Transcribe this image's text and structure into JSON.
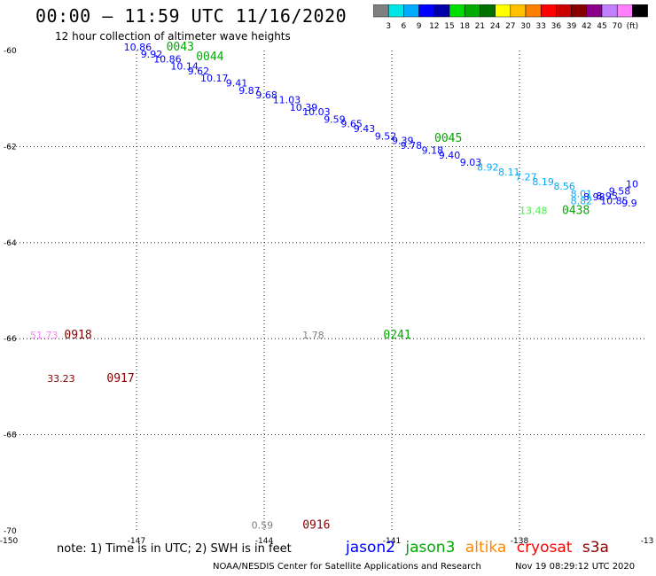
{
  "header": {
    "title": "00:00 — 11:59 UTC 11/16/2020",
    "subtitle": "12 hour collection of altimeter wave heights"
  },
  "colorbar": {
    "colors": [
      "#808080",
      "#00e5e5",
      "#00aaff",
      "#0000ff",
      "#0000a8",
      "#00dd00",
      "#00aa00",
      "#007000",
      "#ffff00",
      "#ffc000",
      "#ff8000",
      "#ff0000",
      "#cc0000",
      "#880000",
      "#8b008b",
      "#c080ff",
      "#ff80ff",
      "#000000"
    ],
    "labels": [
      "3",
      "6",
      "9",
      "12",
      "15",
      "18",
      "21",
      "24",
      "27",
      "30",
      "33",
      "36",
      "39",
      "42",
      "45",
      "70",
      "(ft)"
    ]
  },
  "chart_data": {
    "type": "scatter",
    "title": "00:00 — 11:59 UTC 11/16/2020",
    "subtitle": "12 hour collection of altimeter wave heights",
    "xlim": [
      -150,
      -135
    ],
    "ylim": [
      -70,
      -60
    ],
    "x_ticks": [
      "-150",
      "-147",
      "-144",
      "-141",
      "-138",
      "-13"
    ],
    "y_ticks": [
      "-60",
      "-62",
      "-64",
      "-66",
      "-68",
      "-70"
    ],
    "gridlines": true,
    "swh_points": [
      {
        "lon": -147.3,
        "lat": -60.0,
        "swh": "10.86",
        "color": "#0000ff"
      },
      {
        "lon": -146.9,
        "lat": -60.15,
        "swh": "9.92",
        "color": "#0000ff"
      },
      {
        "lon": -146.6,
        "lat": -60.25,
        "swh": "10.86",
        "color": "#0000ff"
      },
      {
        "lon": -146.2,
        "lat": -60.4,
        "swh": "10.14",
        "color": "#0000ff"
      },
      {
        "lon": -145.8,
        "lat": -60.5,
        "swh": "9.62",
        "color": "#0000ff"
      },
      {
        "lon": -145.5,
        "lat": -60.65,
        "swh": "10.17",
        "color": "#0000ff"
      },
      {
        "lon": -144.9,
        "lat": -60.75,
        "swh": "9.41",
        "color": "#0000ff"
      },
      {
        "lon": -144.6,
        "lat": -60.9,
        "swh": "9.87",
        "color": "#0000ff"
      },
      {
        "lon": -144.2,
        "lat": -61.0,
        "swh": "9.68",
        "color": "#0000ff"
      },
      {
        "lon": -143.8,
        "lat": -61.1,
        "swh": "11.03",
        "color": "#0000ff"
      },
      {
        "lon": -143.4,
        "lat": -61.25,
        "swh": "10.39",
        "color": "#0000ff"
      },
      {
        "lon": -143.1,
        "lat": -61.35,
        "swh": "10.03",
        "color": "#0000ff"
      },
      {
        "lon": -142.6,
        "lat": -61.5,
        "swh": "9.59",
        "color": "#0000ff"
      },
      {
        "lon": -142.2,
        "lat": -61.6,
        "swh": "9.65",
        "color": "#0000ff"
      },
      {
        "lon": -141.9,
        "lat": -61.7,
        "swh": "9.43",
        "color": "#0000ff"
      },
      {
        "lon": -141.4,
        "lat": -61.85,
        "swh": "9.52",
        "color": "#0000ff"
      },
      {
        "lon": -141.0,
        "lat": -61.95,
        "swh": "9.39",
        "color": "#0000ff"
      },
      {
        "lon": -140.8,
        "lat": -62.05,
        "swh": "9.78",
        "color": "#0000ff"
      },
      {
        "lon": -140.3,
        "lat": -62.15,
        "swh": "9.18",
        "color": "#0000ff"
      },
      {
        "lon": -139.9,
        "lat": -62.25,
        "swh": "9.40",
        "color": "#0000ff"
      },
      {
        "lon": -139.4,
        "lat": -62.4,
        "swh": "9.03",
        "color": "#0000ff"
      },
      {
        "lon": -139.0,
        "lat": -62.5,
        "swh": "8.92",
        "color": "#00aaff"
      },
      {
        "lon": -138.5,
        "lat": -62.6,
        "swh": "8.11",
        "color": "#00aaff"
      },
      {
        "lon": -138.1,
        "lat": -62.7,
        "swh": "7.27",
        "color": "#00aaff"
      },
      {
        "lon": -137.7,
        "lat": -62.8,
        "swh": "8.19",
        "color": "#00aaff"
      },
      {
        "lon": -137.2,
        "lat": -62.9,
        "swh": "8.56",
        "color": "#00aaff"
      },
      {
        "lon": -136.8,
        "lat": -63.05,
        "swh": "8.01",
        "color": "#00aaff"
      },
      {
        "lon": -136.5,
        "lat": -63.12,
        "swh": "8.98",
        "color": "#0000ff"
      },
      {
        "lon": -136.2,
        "lat": -63.1,
        "swh": "8.95",
        "color": "#0000ff"
      },
      {
        "lon": -135.9,
        "lat": -63.0,
        "swh": "9.58",
        "color": "#0000ff"
      },
      {
        "lon": -135.5,
        "lat": -62.85,
        "swh": "10",
        "color": "#0000ff"
      },
      {
        "lon": -136.8,
        "lat": -63.2,
        "swh": "8.82",
        "color": "#00aaff"
      },
      {
        "lon": -136.1,
        "lat": -63.2,
        "swh": "10.85",
        "color": "#0000ff"
      },
      {
        "lon": -135.6,
        "lat": -63.25,
        "swh": "9.9",
        "color": "#0000ff"
      },
      {
        "lon": -138.0,
        "lat": -63.4,
        "swh": "13.48",
        "color": "#44ee44"
      },
      {
        "lon": -143.1,
        "lat": -66.0,
        "swh": "1.78",
        "color": "#808080"
      },
      {
        "lon": -149.5,
        "lat": -66.0,
        "swh": "51.73",
        "color": "#ff80ff"
      },
      {
        "lon": -149.1,
        "lat": -66.9,
        "swh": "33.23",
        "color": "#880000"
      },
      {
        "lon": -144.3,
        "lat": -69.95,
        "swh": "0.59",
        "color": "#808080"
      }
    ],
    "time_labels": [
      {
        "lon": -146.3,
        "lat": -60.0,
        "time": "0043",
        "color": "#00aa00"
      },
      {
        "lon": -145.6,
        "lat": -60.2,
        "time": "0044",
        "color": "#00aa00"
      },
      {
        "lon": -140.0,
        "lat": -61.9,
        "time": "0045",
        "color": "#00aa00"
      },
      {
        "lon": -137.0,
        "lat": -63.4,
        "time": "0438",
        "color": "#00aa00"
      },
      {
        "lon": -141.2,
        "lat": -66.0,
        "time": "0241",
        "color": "#00aa00"
      },
      {
        "lon": -148.7,
        "lat": -66.0,
        "time": "0918",
        "color": "#880000"
      },
      {
        "lon": -147.7,
        "lat": -66.9,
        "time": "0917",
        "color": "#880000"
      },
      {
        "lon": -143.1,
        "lat": -69.95,
        "time": "0916",
        "color": "#880000"
      }
    ]
  },
  "footer": {
    "note": "note: 1) Time is in UTC; 2) SWH is in feet",
    "legend": [
      {
        "label": "jason2",
        "color": "#0000ff"
      },
      {
        "label": "jason3",
        "color": "#00aa00"
      },
      {
        "label": "altika",
        "color": "#ff8800"
      },
      {
        "label": "cryosat",
        "color": "#ff0000"
      },
      {
        "label": "s3a",
        "color": "#880000"
      }
    ],
    "credit": "NOAA/NESDIS Center for Satellite Applications and Research",
    "timestamp": "Nov 19 08:29:12 UTC 2020"
  }
}
